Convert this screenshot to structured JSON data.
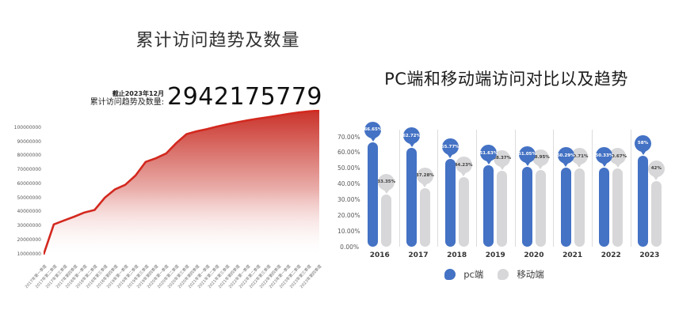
{
  "left_chart": {
    "title": "累计访问趋势及数量",
    "stat": {
      "asof": "截止2023年12月",
      "label": "累计访问趋势及数量:",
      "value": "2942175779"
    },
    "chart_data": {
      "type": "area",
      "title": "累计访问趋势及数量",
      "y_tick_labels": [
        "100000000",
        "90000000",
        "80000000",
        "70000000",
        "60000000",
        "50000000",
        "40000000",
        "30000000",
        "20000000",
        "10000000"
      ],
      "ylim_millions": [
        10,
        113
      ],
      "grid": false,
      "x": [
        "2017年第一季度",
        "2017年第二季度",
        "2017年第三季度",
        "2017年第四季度",
        "2018年第一季度",
        "2018年第二季度",
        "2018年第三季度",
        "2018年第四季度",
        "2019年第一季度",
        "2019年第二季度",
        "2019年第三季度",
        "2019年第四季度",
        "2020年第一季度",
        "2020年第二季度",
        "2020年第三季度",
        "2020年第四季度",
        "2021年第一季度",
        "2021年第二季度",
        "2021年第三季度",
        "2021年第四季度",
        "2022年第一季度",
        "2022年第二季度",
        "2022年第三季度",
        "2022年第四季度",
        "2023年第一季度",
        "2023年第二季度",
        "2023年第三季度",
        "2023年第四季度"
      ],
      "values_millions": [
        10,
        31.5,
        34.3,
        37,
        40,
        41.8,
        50.5,
        56.5,
        59.7,
        66.3,
        76,
        78.6,
        82,
        89.5,
        95.8,
        97.8,
        99.3,
        101.2,
        102.8,
        104.3,
        105.6,
        106.8,
        107.9,
        109,
        110.2,
        111.2,
        112,
        112.5
      ],
      "line_color": "#d3281e",
      "fill_top_color": "#c72a21",
      "fill_bottom_color": "#ffffff"
    }
  },
  "right_chart": {
    "title": "PC端和移动端访问对比以及趋势",
    "chart_data": {
      "type": "bar",
      "title": "PC端和移动端访问对比以及趋势",
      "categories": [
        "2016",
        "2017",
        "2018",
        "2019",
        "2020",
        "2021",
        "2022",
        "2023"
      ],
      "series": [
        {
          "name": "pc端",
          "color": "#4472c4",
          "label_text_color": "#ffffff",
          "values": [
            66.65,
            62.72,
            55.77,
            51.63,
            51.05,
            50.29,
            50.33,
            58
          ],
          "labels": [
            "66.65%",
            "62.72%",
            "55.77%",
            "51.63%",
            "51.05%",
            "50.29%",
            "50.33%",
            "58%"
          ]
        },
        {
          "name": "移动端",
          "color": "#d7d7d9",
          "label_text_color": "#3f3f3f",
          "values": [
            33.35,
            37.28,
            44.23,
            48.37,
            48.95,
            49.71,
            49.67,
            42
          ],
          "labels": [
            "33.35%",
            "37.28%",
            "44.23%",
            "48.37%",
            "48.95%",
            "49.71%",
            "49.67%",
            "42%"
          ]
        }
      ],
      "y_tick_labels": [
        "70.00%",
        "60.00%",
        "50.00%",
        "40.00%",
        "30.00%",
        "20.00%",
        "10.00%",
        "0.00%"
      ],
      "ylim": [
        0,
        70
      ],
      "grid": false,
      "legend_position": "bottom"
    },
    "legend": [
      {
        "label": "pc端",
        "color": "#4472c4"
      },
      {
        "label": "移动端",
        "color": "#d7d7d9"
      }
    ]
  }
}
